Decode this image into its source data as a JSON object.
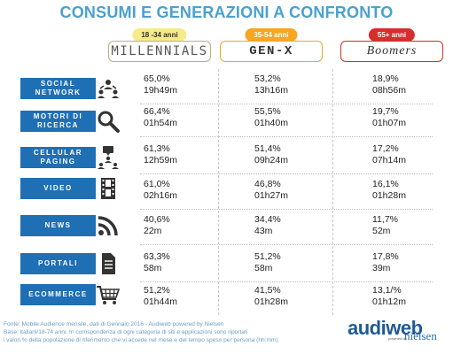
{
  "title": "CONSUMI E GENERAZIONI A CONFRONTO",
  "generations": [
    {
      "age": "18 -34 anni",
      "name": "MILLENNIALS"
    },
    {
      "age": "35-54 anni",
      "name": "GEN-X"
    },
    {
      "age": "55+ anni",
      "name": "Boomers"
    }
  ],
  "rows": [
    {
      "category": [
        "SOCIAL",
        "NETWORK"
      ],
      "icon": "social-network-icon",
      "cells": [
        {
          "pct": "65,0%",
          "time": "19h49m"
        },
        {
          "pct": "53,2%",
          "time": "13h16m"
        },
        {
          "pct": "18,9%",
          "time": "08h56m"
        }
      ]
    },
    {
      "category": [
        "MOTORI DI",
        "RICERCA"
      ],
      "icon": "search-icon",
      "cells": [
        {
          "pct": "66,4%",
          "time": "01h54m"
        },
        {
          "pct": "55,5%",
          "time": "01h40m"
        },
        {
          "pct": "19,7%",
          "time": "01h07m"
        }
      ]
    },
    {
      "category": [
        "CELLULAR",
        "PAGING"
      ],
      "icon": "messaging-network-icon",
      "cells": [
        {
          "pct": "61,3%",
          "time": "12h59m"
        },
        {
          "pct": "51,4%",
          "time": "09h24m"
        },
        {
          "pct": "17,2%",
          "time": "07h14m"
        }
      ]
    },
    {
      "category": [
        "VIDEO"
      ],
      "icon": "film-icon",
      "cells": [
        {
          "pct": "61,0%",
          "time": "02h16m"
        },
        {
          "pct": "46,8%",
          "time": "01h27m"
        },
        {
          "pct": "16,1%",
          "time": "01h28m"
        }
      ]
    },
    {
      "category": [
        "NEWS"
      ],
      "icon": "rss-icon",
      "cells": [
        {
          "pct": "40,6%",
          "time": "22m"
        },
        {
          "pct": "34,4%",
          "time": "43m"
        },
        {
          "pct": "11,7%",
          "time": "52m"
        }
      ]
    },
    {
      "category": [
        "PORTALI"
      ],
      "icon": "document-icon",
      "cells": [
        {
          "pct": "63,3%",
          "time": "58m"
        },
        {
          "pct": "51,2%",
          "time": "58m"
        },
        {
          "pct": "17,8%",
          "time": "39m"
        }
      ]
    },
    {
      "category": [
        "ECOMMERCE"
      ],
      "icon": "shopping-cart-icon",
      "cells": [
        {
          "pct": "51,2%",
          "time": "01h44m"
        },
        {
          "pct": "41,5%",
          "time": "01h28m"
        },
        {
          "pct": "13,1/%",
          "time": "01h12m"
        }
      ]
    }
  ],
  "footer": {
    "line1": "Fonte: Mobile Audience mensile, dati di Gennaio 2016 - Audiweb powered by Nielsen",
    "line2": "Base: italiani/18-74 anni.  In corrispondenza di ogni categoria di siti e applicazioni sono riportati",
    "line3": "i valori % della popolazione di riferimento che vi accede nel mese e del tempo speso per persona (hh:mm)"
  },
  "logo": {
    "brand": "audiweb",
    "partner": "nielsen",
    "powered": "powered by"
  }
}
